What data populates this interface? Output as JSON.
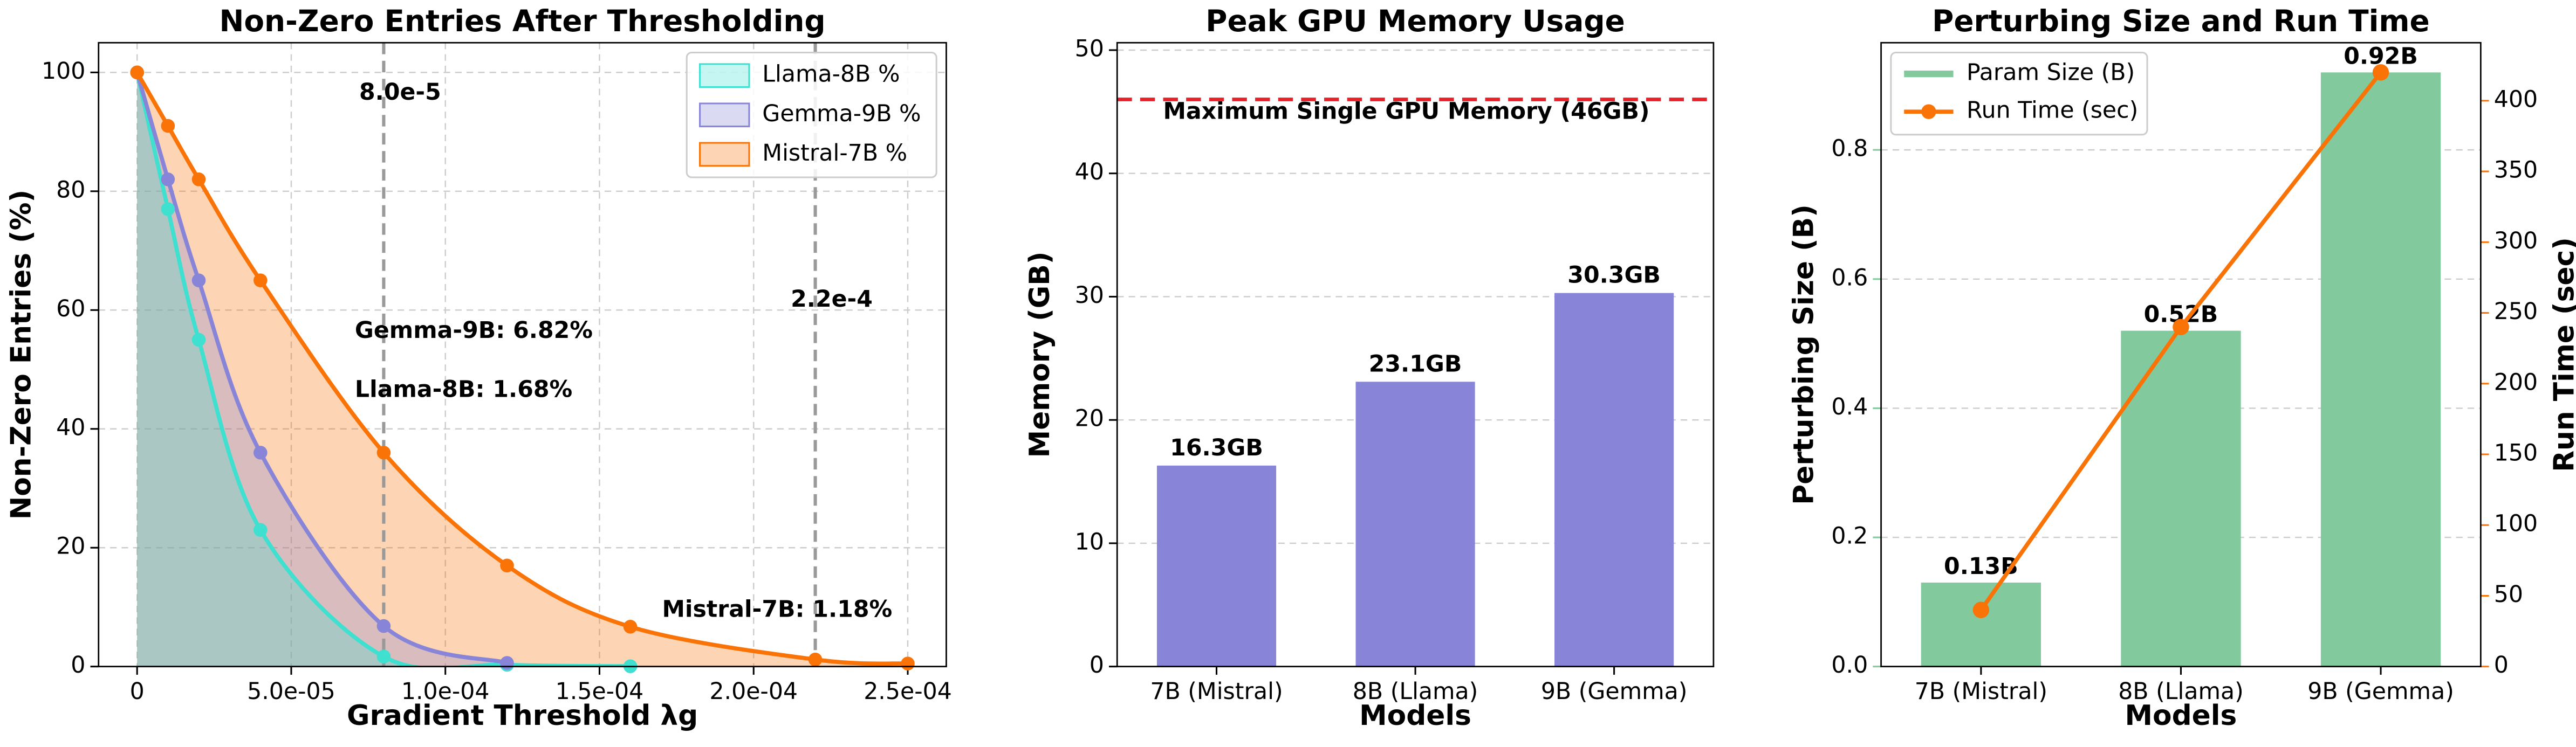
{
  "chart_data": [
    {
      "type": "area",
      "title": "Non-Zero Entries After Thresholding",
      "xlabel": "Gradient Threshold λg",
      "ylabel": "Non-Zero Entries (%)",
      "x": [
        0,
        1e-05,
        2e-05,
        4e-05,
        8e-05,
        0.00012,
        0.00016,
        0.00022,
        0.00025
      ],
      "series": [
        {
          "name": "Llama-8B %",
          "color": "#40e0d0",
          "values": [
            100,
            77,
            55,
            23,
            1.68,
            0.3,
            0.05,
            null,
            null
          ]
        },
        {
          "name": "Gemma-9B %",
          "color": "#8884d8",
          "values": [
            100,
            82,
            65,
            36,
            6.82,
            0.6,
            null,
            null,
            null
          ]
        },
        {
          "name": "Mistral-7B %",
          "color": "#f97306",
          "values": [
            100,
            91,
            82,
            65,
            36,
            17,
            6.7,
            1.18,
            0.5
          ]
        }
      ],
      "xlim": [
        -1.25e-05,
        0.0002625
      ],
      "xticks": [
        0,
        {
          "value": 5e-05,
          "label": "5.0e-05"
        },
        {
          "value": 0.0001,
          "label": "1.0e-04"
        },
        {
          "value": 0.00015,
          "label": "1.5e-04"
        },
        {
          "value": 0.0002,
          "label": "2.0e-04"
        },
        {
          "value": 0.00025,
          "label": "2.5e-04"
        }
      ],
      "ylim": [
        0,
        105
      ],
      "yticks": [
        0,
        20,
        40,
        60,
        80,
        100
      ],
      "grid": true,
      "legend": "upper right",
      "vlines": [
        {
          "value": 8e-05,
          "label": "8.0e-5",
          "color": "#40e0d0"
        },
        {
          "value": 0.00022,
          "label": "2.2e-4",
          "color": "#f97306"
        }
      ],
      "annotations": [
        {
          "text": "Gemma-9B: 6.82%",
          "color": "#8884d8"
        },
        {
          "text": "Llama-8B: 1.68%",
          "color": "#40e0d0"
        },
        {
          "text": "Mistral-7B: 1.18%",
          "color": "#f97306"
        }
      ]
    },
    {
      "type": "bar",
      "title": "Peak GPU Memory Usage",
      "xlabel": "Models",
      "ylabel": "Memory (GB)",
      "categories": [
        "7B (Mistral)",
        "8B (Llama)",
        "9B (Gemma)"
      ],
      "values": [
        16.3,
        23.1,
        30.3
      ],
      "value_labels": [
        "16.3GB",
        "23.1GB",
        "30.3GB"
      ],
      "color": "#8884d8",
      "ylim": [
        0,
        50.6
      ],
      "yticks": [
        0,
        10,
        20,
        30,
        40,
        50
      ],
      "grid": true,
      "hlines": [
        {
          "value": 46,
          "label": "Maximum Single GPU Memory (46GB)",
          "color": "#e8202a"
        }
      ]
    },
    {
      "type": "combo",
      "title": "Perturbing Size and Run Time",
      "xlabel": "Models",
      "ylabel": "Perturbing Size (B)",
      "y2label": "Run Time (sec)",
      "categories": [
        "7B (Mistral)",
        "8B (Llama)",
        "9B (Gemma)"
      ],
      "series": [
        {
          "name": "Param Size (B)",
          "type": "bar",
          "color": "#82ca9d",
          "values": [
            0.13,
            0.52,
            0.92
          ],
          "value_labels": [
            "0.13B",
            "0.52B",
            "0.92B"
          ]
        },
        {
          "name": "Run Time (sec)",
          "type": "line",
          "axis": "y2",
          "color": "#f97306",
          "values": [
            40,
            240,
            420
          ]
        }
      ],
      "ylim": [
        0,
        0.966
      ],
      "yticks": [
        {
          "value": 0,
          "label": "0.0"
        },
        0.2,
        0.4,
        0.6,
        0.8
      ],
      "y2lim": [
        0,
        441
      ],
      "y2ticks": [
        0,
        50,
        100,
        150,
        200,
        250,
        300,
        350,
        400
      ],
      "grid": true,
      "legend": "upper left"
    }
  ]
}
